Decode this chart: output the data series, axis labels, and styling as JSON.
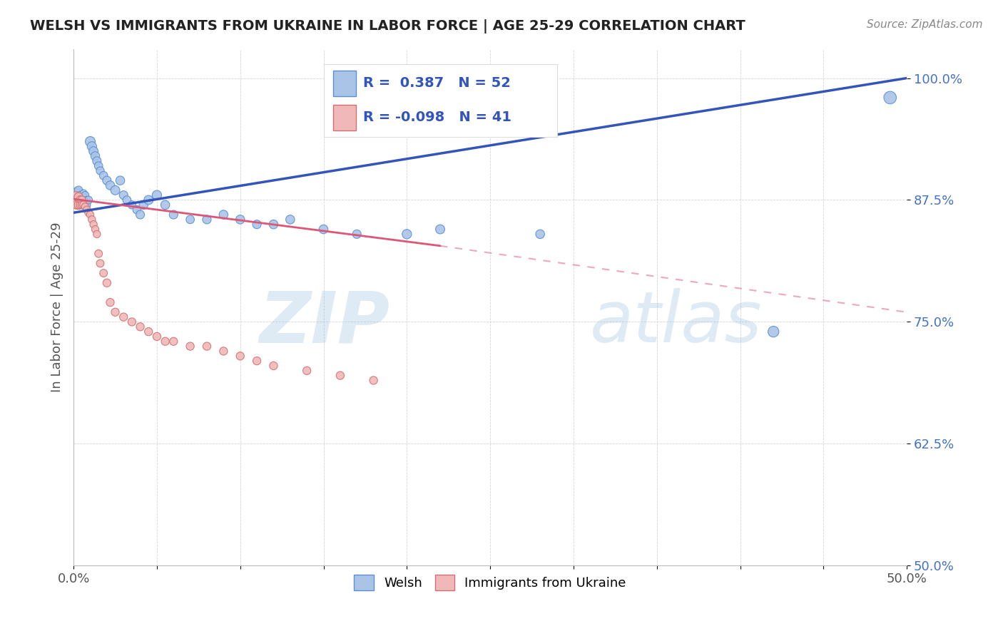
{
  "title": "WELSH VS IMMIGRANTS FROM UKRAINE IN LABOR FORCE | AGE 25-29 CORRELATION CHART",
  "source": "Source: ZipAtlas.com",
  "ylabel": "In Labor Force | Age 25-29",
  "xlim": [
    0.0,
    0.5
  ],
  "ylim": [
    0.5,
    1.03
  ],
  "xticks": [
    0.0,
    0.05,
    0.1,
    0.15,
    0.2,
    0.25,
    0.3,
    0.35,
    0.4,
    0.45,
    0.5
  ],
  "xtick_labels": [
    "0.0%",
    "",
    "",
    "",
    "",
    "",
    "",
    "",
    "",
    "",
    "50.0%"
  ],
  "yticks": [
    0.5,
    0.625,
    0.75,
    0.875,
    1.0
  ],
  "ytick_labels": [
    "50.0%",
    "62.5%",
    "75.0%",
    "87.5%",
    "100.0%"
  ],
  "welsh_color": "#aac4e8",
  "ukraine_color": "#f0b8b8",
  "welsh_edge_color": "#5a8fd0",
  "ukraine_edge_color": "#d07070",
  "welsh_line_color": "#3355bb",
  "ukraine_line_color": "#dd5577",
  "R_welsh": 0.387,
  "N_welsh": 52,
  "R_ukraine": -0.098,
  "N_ukraine": 41,
  "legend_labels": [
    "Welsh",
    "Immigrants from Ukraine"
  ],
  "watermark_zip": "ZIP",
  "watermark_atlas": "atlas",
  "welsh_x": [
    0.001,
    0.002,
    0.002,
    0.003,
    0.003,
    0.003,
    0.004,
    0.004,
    0.005,
    0.005,
    0.006,
    0.006,
    0.007,
    0.008,
    0.008,
    0.009,
    0.01,
    0.011,
    0.012,
    0.013,
    0.014,
    0.015,
    0.016,
    0.018,
    0.02,
    0.022,
    0.025,
    0.028,
    0.03,
    0.032,
    0.035,
    0.038,
    0.04,
    0.042,
    0.045,
    0.05,
    0.055,
    0.06,
    0.07,
    0.08,
    0.09,
    0.1,
    0.11,
    0.12,
    0.13,
    0.15,
    0.17,
    0.2,
    0.22,
    0.28,
    0.42,
    0.49
  ],
  "welsh_y": [
    0.875,
    0.878,
    0.882,
    0.875,
    0.87,
    0.885,
    0.875,
    0.88,
    0.875,
    0.87,
    0.878,
    0.882,
    0.88,
    0.875,
    0.87,
    0.875,
    0.935,
    0.93,
    0.925,
    0.92,
    0.915,
    0.91,
    0.905,
    0.9,
    0.895,
    0.89,
    0.885,
    0.895,
    0.88,
    0.875,
    0.87,
    0.865,
    0.86,
    0.87,
    0.875,
    0.88,
    0.87,
    0.86,
    0.855,
    0.855,
    0.86,
    0.855,
    0.85,
    0.85,
    0.855,
    0.845,
    0.84,
    0.84,
    0.845,
    0.84,
    0.74,
    0.98
  ],
  "welsh_sizes": [
    200,
    150,
    130,
    100,
    80,
    70,
    60,
    60,
    55,
    55,
    50,
    50,
    55,
    55,
    55,
    60,
    100,
    90,
    85,
    80,
    75,
    70,
    65,
    70,
    75,
    80,
    85,
    80,
    75,
    70,
    65,
    70,
    75,
    80,
    85,
    90,
    80,
    75,
    70,
    75,
    80,
    80,
    75,
    80,
    80,
    80,
    75,
    90,
    85,
    80,
    120,
    160
  ],
  "ukraine_x": [
    0.001,
    0.001,
    0.002,
    0.002,
    0.003,
    0.003,
    0.004,
    0.004,
    0.005,
    0.005,
    0.006,
    0.007,
    0.008,
    0.009,
    0.01,
    0.011,
    0.012,
    0.013,
    0.014,
    0.015,
    0.016,
    0.018,
    0.02,
    0.022,
    0.025,
    0.03,
    0.035,
    0.04,
    0.045,
    0.05,
    0.055,
    0.06,
    0.07,
    0.08,
    0.09,
    0.1,
    0.11,
    0.12,
    0.14,
    0.16,
    0.18
  ],
  "ukraine_y": [
    0.878,
    0.872,
    0.875,
    0.87,
    0.878,
    0.87,
    0.875,
    0.87,
    0.875,
    0.87,
    0.87,
    0.868,
    0.865,
    0.862,
    0.86,
    0.855,
    0.85,
    0.845,
    0.84,
    0.82,
    0.81,
    0.8,
    0.79,
    0.77,
    0.76,
    0.755,
    0.75,
    0.745,
    0.74,
    0.735,
    0.73,
    0.73,
    0.725,
    0.725,
    0.72,
    0.715,
    0.71,
    0.705,
    0.7,
    0.695,
    0.69
  ],
  "ukraine_sizes": [
    120,
    100,
    90,
    80,
    80,
    75,
    70,
    65,
    65,
    60,
    60,
    58,
    55,
    55,
    55,
    55,
    55,
    55,
    55,
    60,
    60,
    60,
    65,
    65,
    65,
    65,
    65,
    65,
    65,
    65,
    65,
    65,
    65,
    65,
    65,
    65,
    65,
    65,
    65,
    65,
    65
  ]
}
